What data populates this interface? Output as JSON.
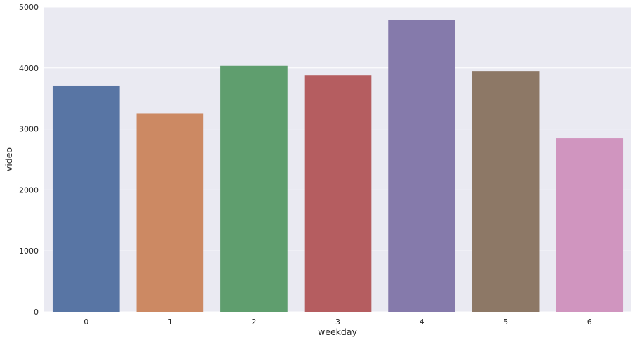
{
  "chart_data": {
    "type": "bar",
    "categories": [
      "0",
      "1",
      "2",
      "3",
      "4",
      "5",
      "6"
    ],
    "values": [
      3710,
      3255,
      4035,
      3880,
      4790,
      3950,
      2845
    ],
    "colors": [
      "#5875a4",
      "#cc8963",
      "#5f9e6e",
      "#b55d60",
      "#857aab",
      "#8d7866",
      "#d095bf"
    ],
    "xlabel": "weekday",
    "ylabel": "video",
    "ylim": [
      0,
      5000
    ],
    "yticks": [
      0,
      1000,
      2000,
      3000,
      4000,
      5000
    ],
    "grid": true,
    "background": "#eaeaf2"
  }
}
